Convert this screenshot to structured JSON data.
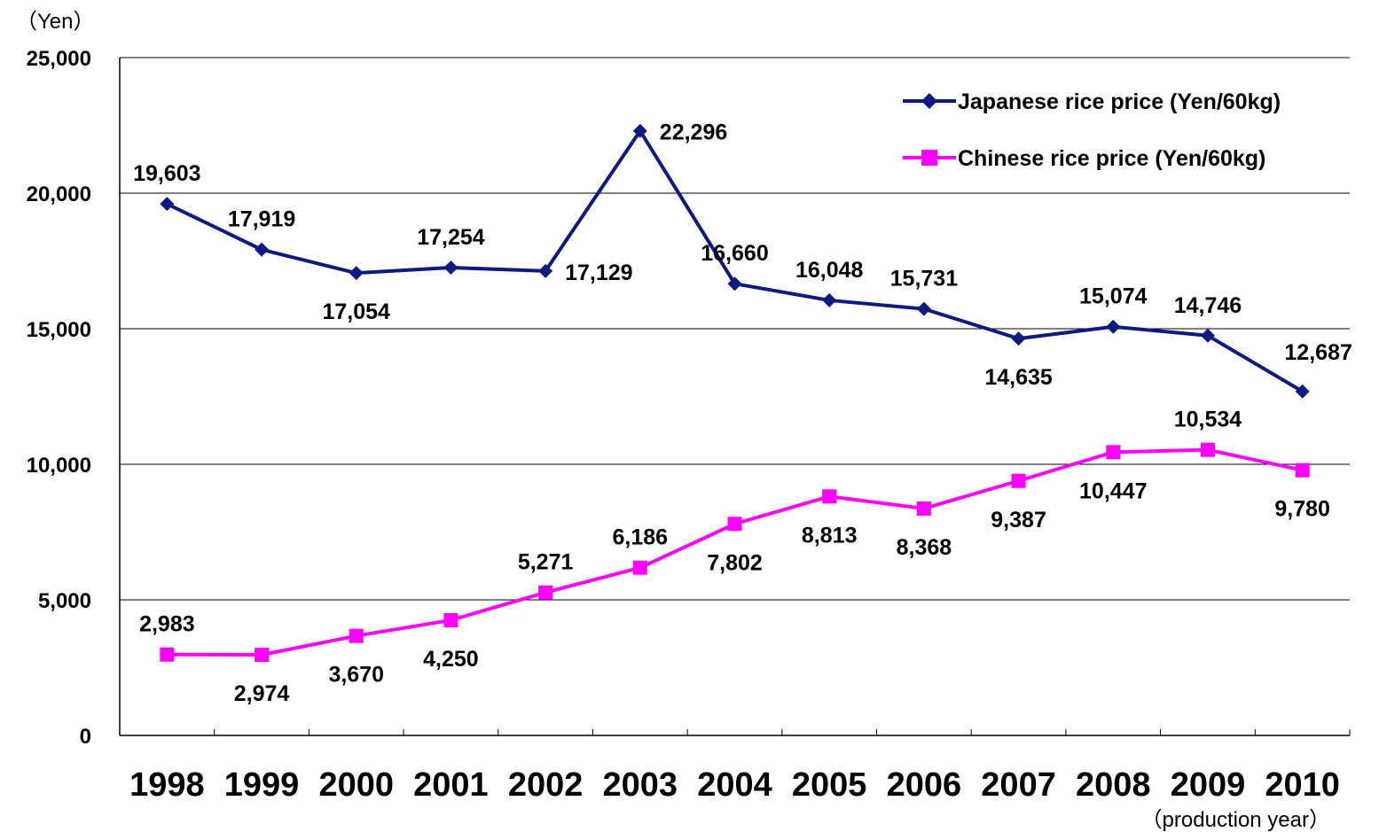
{
  "chart_data": {
    "type": "line",
    "y_unit": "（Yen）",
    "x_unit": "（production year）",
    "categories": [
      "1998",
      "1999",
      "2000",
      "2001",
      "2002",
      "2003",
      "2004",
      "2005",
      "2006",
      "2007",
      "2008",
      "2009",
      "2010"
    ],
    "ylim": [
      0,
      25000
    ],
    "yticks": [
      0,
      5000,
      10000,
      15000,
      20000,
      25000
    ],
    "ytick_labels": [
      "0",
      "5,000",
      "10,000",
      "15,000",
      "20,000",
      "25,000"
    ],
    "grid": true,
    "legend_position": "top-right",
    "series": [
      {
        "name": "Japanese rice price (Yen/60kg)",
        "color": "#0d1a80",
        "marker": "diamond",
        "values": [
          19603,
          17919,
          17054,
          17254,
          17129,
          22296,
          16660,
          16048,
          15731,
          14635,
          15074,
          14746,
          12687
        ],
        "labels": [
          "19,603",
          "17,919",
          "17,054",
          "17,254",
          "17,129",
          "22,296",
          "16,660",
          "16,048",
          "15,731",
          "14,635",
          "15,074",
          "14,746",
          "12,687"
        ]
      },
      {
        "name": "Chinese rice price (Yen/60kg)",
        "color": "#ff00ff",
        "marker": "square",
        "values": [
          2983,
          2974,
          3670,
          4250,
          5271,
          6186,
          7802,
          8813,
          8368,
          9387,
          10447,
          10534,
          9780
        ],
        "labels": [
          "2,983",
          "2,974",
          "3,670",
          "4,250",
          "5,271",
          "6,186",
          "7,802",
          "8,813",
          "8,368",
          "9,387",
          "10,447",
          "10,534",
          "9,780"
        ]
      }
    ]
  }
}
